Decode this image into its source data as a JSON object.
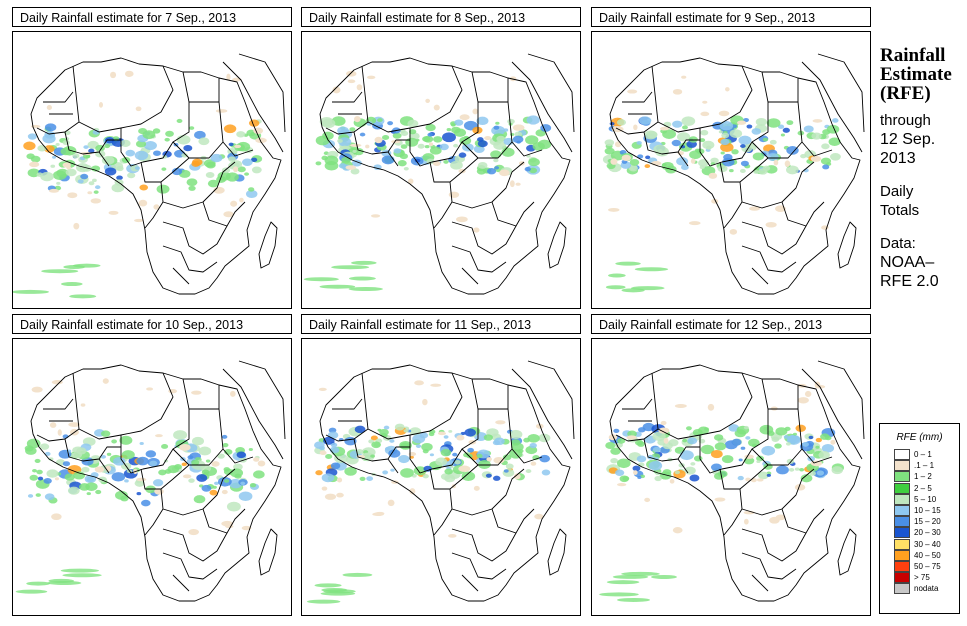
{
  "panels": [
    {
      "title": "Daily Rainfall estimate for  7 Sep., 2013",
      "date": "7 Sep., 2013"
    },
    {
      "title": "Daily Rainfall estimate for  8 Sep., 2013",
      "date": "8 Sep., 2013"
    },
    {
      "title": "Daily Rainfall estimate for  9 Sep., 2013",
      "date": "9 Sep., 2013"
    },
    {
      "title": "Daily Rainfall estimate for  10 Sep., 2013",
      "date": "10 Sep., 2013"
    },
    {
      "title": "Daily Rainfall estimate for  11 Sep., 2013",
      "date": "11 Sep., 2013"
    },
    {
      "title": "Daily Rainfall estimate for  12 Sep., 2013",
      "date": "12 Sep., 2013"
    }
  ],
  "sidebar": {
    "title_line1": "Rainfall",
    "title_line2": "Estimate",
    "title_line3": "(RFE)",
    "through": "through",
    "through_date1": "12 Sep.",
    "through_date2": "2013",
    "daily1": "Daily",
    "daily2": "Totals",
    "data_label": "Data:",
    "data_src1": "NOAA–",
    "data_src2": "RFE 2.0"
  },
  "legend": {
    "title": "RFE (mm)",
    "items": [
      {
        "label": "0 – 1",
        "color": "#ffffff"
      },
      {
        "label": ".1 – 1",
        "color": "#f3e2cc"
      },
      {
        "label": "1 – 2",
        "color": "#7fe27f"
      },
      {
        "label": "2 – 5",
        "color": "#3fcf3f"
      },
      {
        "label": "5 – 10",
        "color": "#bfe7bf"
      },
      {
        "label": "10 – 15",
        "color": "#8fc8f0"
      },
      {
        "label": "15 – 20",
        "color": "#4a8fe6"
      },
      {
        "label": "20 – 30",
        "color": "#1a55d0"
      },
      {
        "label": "30 – 40",
        "color": "#ffe066"
      },
      {
        "label": "40 – 50",
        "color": "#ffa020"
      },
      {
        "label": "50 – 75",
        "color": "#ff4010"
      },
      {
        "label": "> 75",
        "color": "#c80000"
      },
      {
        "label": "nodata",
        "color": "#c8c8c8"
      }
    ]
  }
}
